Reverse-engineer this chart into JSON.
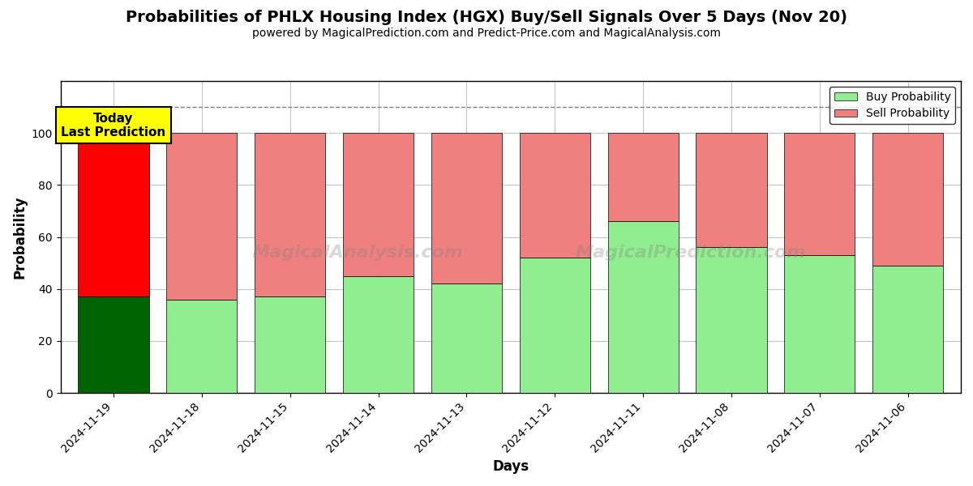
{
  "title": "Probabilities of PHLX Housing Index (HGX) Buy/Sell Signals Over 5 Days (Nov 20)",
  "subtitle": "powered by MagicalPrediction.com and Predict-Price.com and MagicalAnalysis.com",
  "xlabel": "Days",
  "ylabel": "Probability",
  "categories": [
    "2024-11-19",
    "2024-11-18",
    "2024-11-15",
    "2024-11-14",
    "2024-11-13",
    "2024-11-12",
    "2024-11-11",
    "2024-11-08",
    "2024-11-07",
    "2024-11-06"
  ],
  "buy_values": [
    37,
    36,
    37,
    45,
    42,
    52,
    66,
    56,
    53,
    49
  ],
  "sell_values": [
    63,
    64,
    63,
    55,
    58,
    48,
    34,
    44,
    47,
    51
  ],
  "today_buy_color": "#006400",
  "today_sell_color": "#FF0000",
  "buy_color": "#90EE90",
  "sell_color": "#F08080",
  "today_label_bg": "#FFFF00",
  "dashed_line_y": 110,
  "ylim": [
    0,
    120
  ],
  "yticks": [
    0,
    20,
    40,
    60,
    80,
    100
  ],
  "bar_width": 0.8,
  "background_color": "#ffffff",
  "grid_color": "#aaaaaa",
  "watermark1": "MagicalAnalysis.com",
  "watermark2": "MagicalPrediction.com"
}
